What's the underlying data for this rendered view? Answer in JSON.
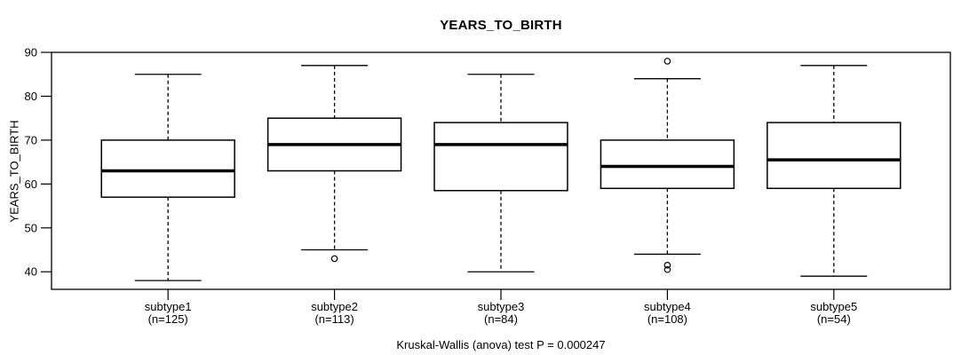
{
  "chart_data": {
    "type": "boxplot",
    "title": "YEARS_TO_BIRTH",
    "ylabel": "YEARS_TO_BIRTH",
    "caption": "Kruskal-Wallis (anova) test P = 0.000247",
    "ylim": [
      36,
      90
    ],
    "yticks": [
      40,
      50,
      60,
      70,
      80,
      90
    ],
    "xlim": [
      0.3,
      5.7
    ],
    "box_width": 0.8,
    "grid": false,
    "legend": "none",
    "groups": [
      {
        "label": "subtype1",
        "n_label": "(n=125)",
        "position": 1,
        "whisker_low": 38,
        "q1": 57,
        "median": 63,
        "q3": 70,
        "whisker_high": 85,
        "outliers": []
      },
      {
        "label": "subtype2",
        "n_label": "(n=113)",
        "position": 2,
        "whisker_low": 45,
        "q1": 63,
        "median": 69,
        "q3": 75,
        "whisker_high": 87,
        "outliers": [
          43
        ]
      },
      {
        "label": "subtype3",
        "n_label": "(n=84)",
        "position": 3,
        "whisker_low": 40,
        "q1": 58.5,
        "median": 69,
        "q3": 74,
        "whisker_high": 85,
        "outliers": []
      },
      {
        "label": "subtype4",
        "n_label": "(n=108)",
        "position": 4,
        "whisker_low": 44,
        "q1": 59,
        "median": 64,
        "q3": 70,
        "whisker_high": 84,
        "outliers": [
          88,
          41.5,
          40.5
        ]
      },
      {
        "label": "subtype5",
        "n_label": "(n=54)",
        "position": 5,
        "whisker_low": 39,
        "q1": 59,
        "median": 65.5,
        "q3": 74,
        "whisker_high": 87,
        "outliers": []
      }
    ],
    "colors": {
      "line": "#000000",
      "box_fill": "#ffffff",
      "background": "#ffffff"
    }
  }
}
